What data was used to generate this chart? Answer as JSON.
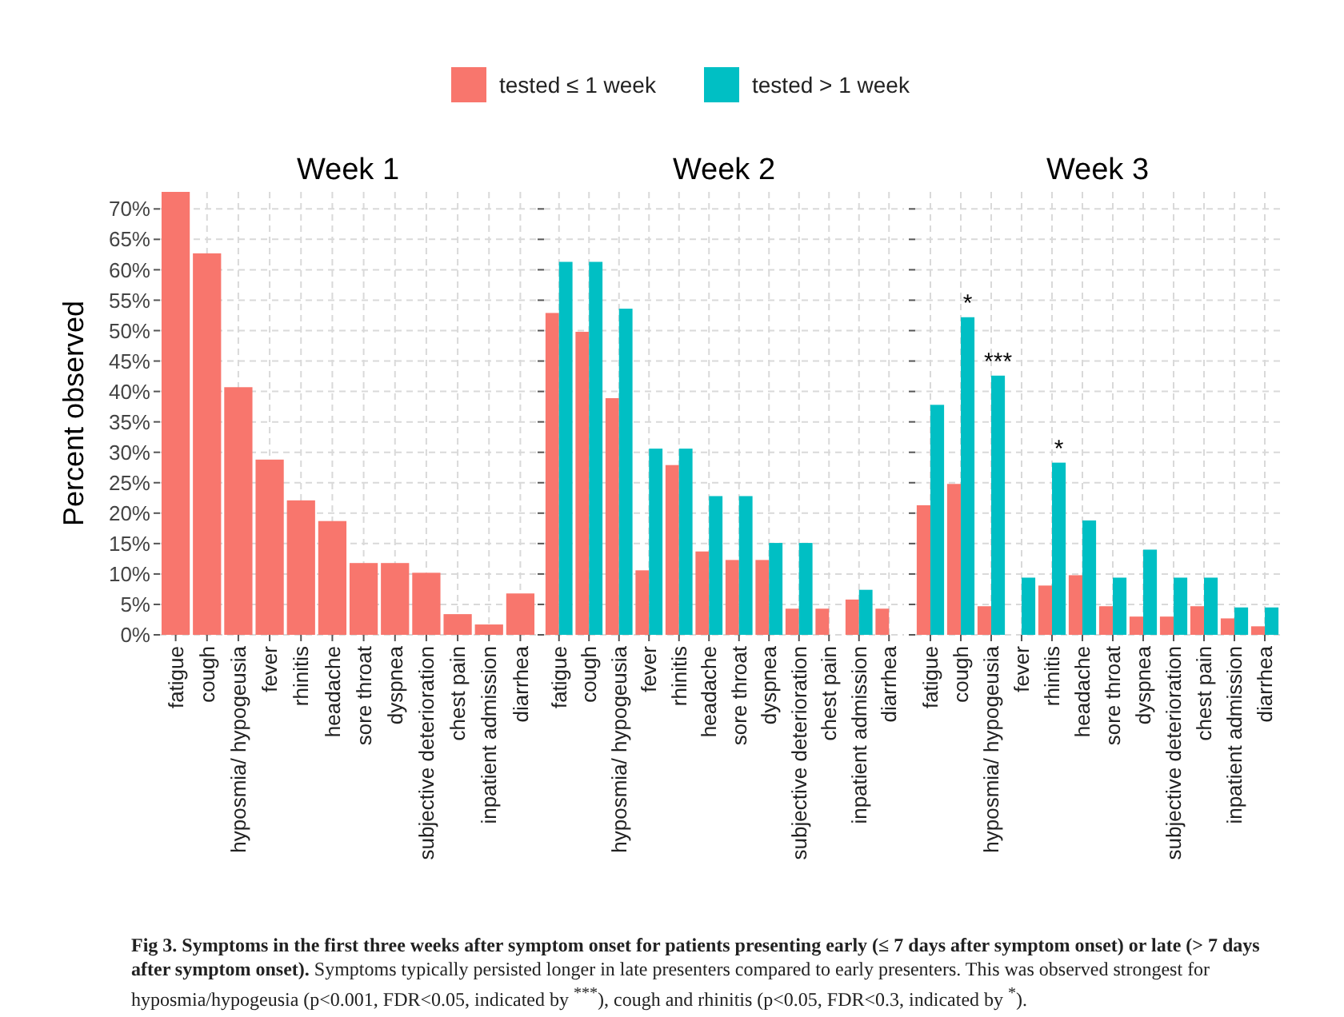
{
  "chart_data": [
    {
      "type": "bar",
      "title": "Week 1",
      "ylabel": "Percent observed",
      "categories": [
        "fatigue",
        "cough",
        "hyposmia/ hypogeusia",
        "fever",
        "rhinitis",
        "headache",
        "sore throat",
        "dyspnea",
        "subjective deterioration",
        "chest pain",
        "inpatient admission",
        "diarrhea"
      ],
      "series": [
        {
          "color": "#f8766d",
          "values": [
            72.8,
            62.7,
            40.7,
            28.8,
            22.1,
            18.7,
            11.8,
            11.8,
            10.2,
            3.4,
            1.7,
            6.8
          ]
        }
      ],
      "ylim": [
        0,
        72.8
      ],
      "yticks": [
        {
          "value": 0,
          "label": "0%"
        },
        {
          "value": 5,
          "label": "5%"
        },
        {
          "value": 10,
          "label": "10%"
        },
        {
          "value": 15,
          "label": "15%"
        },
        {
          "value": 20,
          "label": "20%"
        },
        {
          "value": 25,
          "label": "25%"
        },
        {
          "value": 30,
          "label": "30%"
        },
        {
          "value": 35,
          "label": "35%"
        },
        {
          "value": 40,
          "label": "40%"
        },
        {
          "value": 45,
          "label": "45%"
        },
        {
          "value": 50,
          "label": "50%"
        },
        {
          "value": 55,
          "label": "55%"
        },
        {
          "value": 60,
          "label": "60%"
        },
        {
          "value": 65,
          "label": "65%"
        },
        {
          "value": 70,
          "label": "70%"
        }
      ],
      "grid": true,
      "annotations": [
        "Fig 3. Symptoms in the first three weeks after symptom onset for patients presenting early (≤ 7 days after symptom onset) or late (> 7 days after symptom onset).",
        "Symptoms typically persisted longer in late presenters compared to early presenters. This was observed strongest for hyposmia/hypogeusia (p<0.001, FDR<0.05, indicated by $^{***}$), cough and rhinitis (p<0.05, FDR<0.3, indicated by $^{*}$)."
      ]
    },
    {
      "type": "bar",
      "title": "Week 2",
      "categories": [
        "fatigue",
        "cough",
        "hyposmia/ hypogeusia",
        "fever",
        "rhinitis",
        "headache",
        "sore throat",
        "dyspnea",
        "subjective deterioration",
        "chest pain",
        "inpatient admission",
        "diarrhea"
      ],
      "series": [
        {
          "name": "tested ≤ 1 week",
          "color": "#f8766d",
          "values": [
            52.9,
            49.8,
            38.9,
            10.6,
            27.9,
            13.7,
            12.3,
            12.3,
            4.3,
            4.3,
            5.8,
            4.3
          ]
        },
        {
          "name": "tested > 1 week",
          "color": "#00bfc4",
          "values": [
            61.3,
            61.3,
            53.6,
            30.6,
            30.6,
            22.8,
            22.8,
            15.1,
            15.1,
            null,
            7.4,
            null
          ]
        }
      ],
      "ylim": [
        0,
        72.8
      ],
      "yticks": [
        {
          "value": 0,
          "label": null
        },
        {
          "value": 5,
          "label": null
        },
        {
          "value": 10,
          "label": null
        },
        {
          "value": 15,
          "label": null
        },
        {
          "value": 20,
          "label": null
        },
        {
          "value": 25,
          "label": null
        },
        {
          "value": 30,
          "label": null
        },
        {
          "value": 35,
          "label": null
        },
        {
          "value": 40,
          "label": null
        },
        {
          "value": 45,
          "label": null
        },
        {
          "value": 50,
          "label": null
        },
        {
          "value": 55,
          "label": null
        },
        {
          "value": 60,
          "label": null
        },
        {
          "value": 65,
          "label": null
        },
        {
          "value": 70,
          "label": null
        }
      ],
      "grid": true,
      "legend": "top",
      "tick_labels": "x"
    },
    {
      "type": "bar",
      "title": "Week 3",
      "categories": [
        "fatigue",
        "cough",
        "hyposmia/ hypogeusia",
        "fever",
        "rhinitis",
        "headache",
        "sore throat",
        "dyspnea",
        "subjective deterioration",
        "chest pain",
        "inpatient admission",
        "diarrhea"
      ],
      "series": [
        {
          "color": "#f8766d",
          "values": [
            21.3,
            24.8,
            4.7,
            null,
            8.1,
            9.8,
            4.7,
            3.0,
            3.0,
            4.7,
            2.7,
            1.4
          ]
        },
        {
          "color": "#00bfc4",
          "values": [
            37.8,
            52.2,
            42.6,
            9.4,
            28.3,
            18.8,
            9.4,
            14.0,
            9.4,
            9.4,
            4.5,
            4.5
          ]
        }
      ],
      "ylim": [
        0,
        72.8
      ],
      "yticks": [
        {
          "value": 0,
          "label": null
        },
        {
          "value": 5,
          "label": null
        },
        {
          "value": 10,
          "label": null
        },
        {
          "value": 15,
          "label": null
        },
        {
          "value": 20,
          "label": null
        },
        {
          "value": 25,
          "label": null
        },
        {
          "value": 30,
          "label": null
        },
        {
          "value": 35,
          "label": null
        },
        {
          "value": 40,
          "label": null
        },
        {
          "value": 45,
          "label": null
        },
        {
          "value": 50,
          "label": null
        },
        {
          "value": 55,
          "label": null
        },
        {
          "value": 60,
          "label": null
        },
        {
          "value": 65,
          "label": null
        },
        {
          "value": 70,
          "label": null
        }
      ],
      "grid": true,
      "tick_labels": "x",
      "annotations": [
        {
          "text": "*",
          "x": "cough",
          "y": 52.2
        },
        {
          "text": "***",
          "x": "hyposmia/ hypogeusia",
          "y": 42.6
        },
        {
          "text": "*",
          "x": "rhinitis",
          "y": 28.3
        }
      ]
    }
  ]
}
